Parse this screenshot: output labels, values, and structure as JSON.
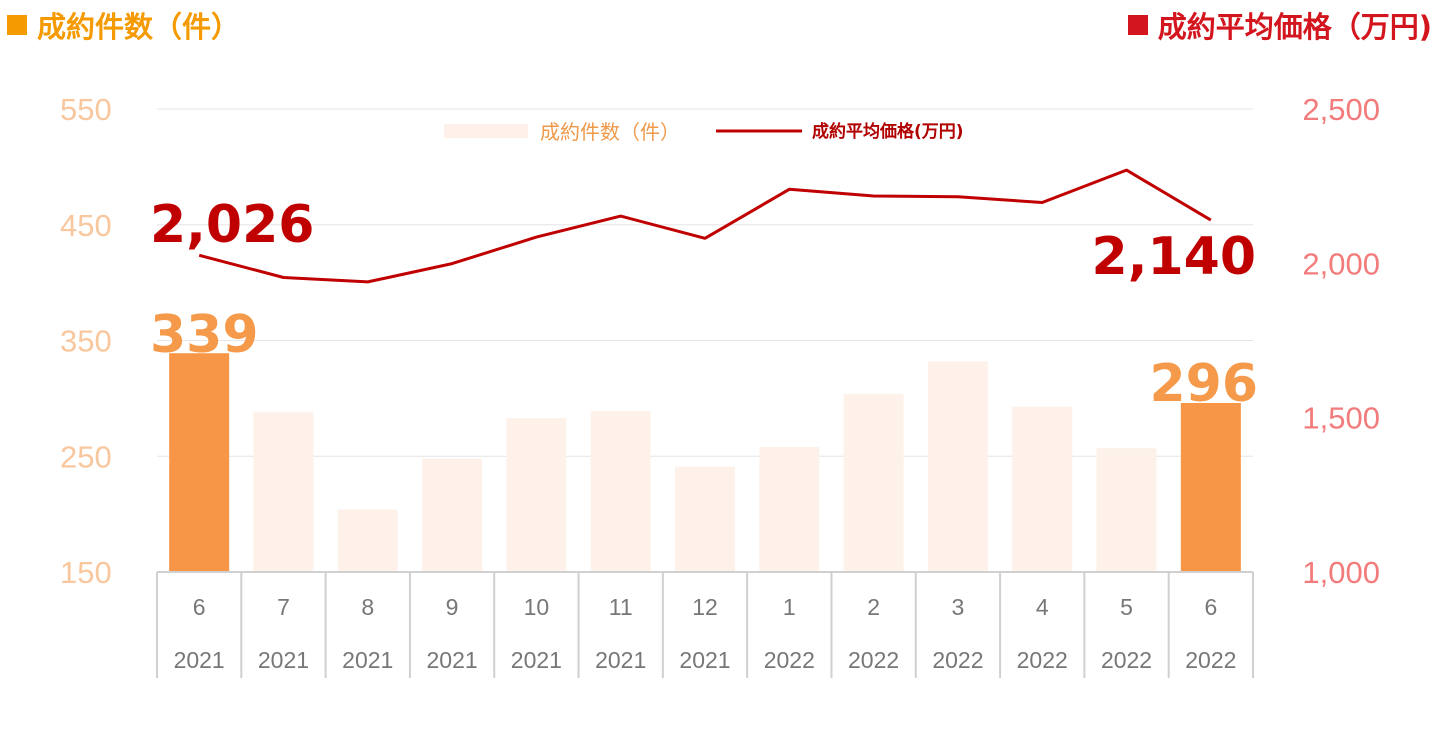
{
  "header": {
    "left_title": "成約件数（件）",
    "right_title": "成約平均価格（万円)"
  },
  "legend": {
    "count_label": "成約件数（件）",
    "price_label": "成約平均価格(万円)"
  },
  "colors": {
    "bar_highlight": "#F79646",
    "bar_muted": "#FDF1EA",
    "line": "#C00000",
    "left_axis": "#F9C79E",
    "right_axis": "#F27B7B"
  },
  "chart_data": {
    "type": "bar",
    "categories": [
      {
        "month": "6",
        "year": "2021"
      },
      {
        "month": "7",
        "year": "2021"
      },
      {
        "month": "8",
        "year": "2021"
      },
      {
        "month": "9",
        "year": "2021"
      },
      {
        "month": "10",
        "year": "2021"
      },
      {
        "month": "11",
        "year": "2021"
      },
      {
        "month": "12",
        "year": "2021"
      },
      {
        "month": "1",
        "year": "2022"
      },
      {
        "month": "2",
        "year": "2022"
      },
      {
        "month": "3",
        "year": "2022"
      },
      {
        "month": "4",
        "year": "2022"
      },
      {
        "month": "5",
        "year": "2022"
      },
      {
        "month": "6",
        "year": "2022"
      }
    ],
    "series": [
      {
        "name": "成約件数（件）",
        "type": "bar",
        "axis": "left",
        "values": [
          339,
          288,
          204,
          248,
          283,
          289,
          241,
          258,
          304,
          332,
          293,
          257,
          296
        ],
        "highlight": [
          true,
          false,
          false,
          false,
          false,
          false,
          false,
          false,
          false,
          false,
          false,
          false,
          true
        ]
      },
      {
        "name": "成約平均価格(万円)",
        "type": "line",
        "axis": "right",
        "values": [
          2026,
          1954,
          1940,
          1999,
          2085,
          2153,
          2081,
          2240,
          2218,
          2216,
          2197,
          2302,
          2140
        ]
      }
    ],
    "left_axis": {
      "min": 150,
      "max": 550,
      "ticks": [
        "150",
        "250",
        "350",
        "450",
        "550"
      ]
    },
    "right_axis": {
      "min": 1000,
      "max": 2500,
      "ticks": [
        "1,000",
        "1,500",
        "2,000",
        "2,500"
      ]
    },
    "annotations": {
      "first_price": "2,026",
      "last_price": "2,140",
      "first_count": "339",
      "last_count": "296"
    },
    "grid": true,
    "legend_position": "top-center"
  }
}
